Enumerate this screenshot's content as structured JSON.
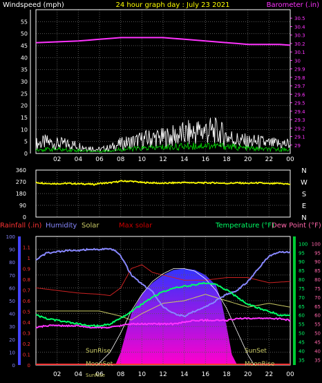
{
  "chart_data": [
    {
      "type": "line",
      "title": "24 hour graph day : July 23 2021",
      "left_axis_label": "Windspeed (mph)",
      "right_axis_label": "Barometer (.in)",
      "x_ticks": [
        "02",
        "04",
        "06",
        "08",
        "10",
        "12",
        "14",
        "16",
        "18",
        "20",
        "22",
        "00"
      ],
      "x_range": [
        0,
        24
      ],
      "left_ylim": [
        0,
        60
      ],
      "left_ticks": [
        "0",
        "5",
        "10",
        "15",
        "20",
        "25",
        "30",
        "35",
        "40",
        "45",
        "50",
        "55"
      ],
      "right_ylim": [
        28.9,
        30.6
      ],
      "right_ticks": [
        "29",
        "29.1",
        "29.2",
        "29.3",
        "29.4",
        "29.5",
        "29.6",
        "29.7",
        "29.8",
        "29.9",
        "30",
        "30.1",
        "30.2",
        "30.3",
        "30.4",
        "30.5"
      ],
      "grid": true,
      "series": [
        {
          "name": "Barometer (.in)",
          "color": "#ff33ff",
          "axis": "right",
          "x": [
            0,
            2,
            4,
            6,
            7,
            8,
            9,
            10,
            11,
            12,
            13,
            14,
            15,
            16,
            17,
            18,
            19,
            20,
            21,
            22,
            23,
            24
          ],
          "values": [
            30.21,
            30.22,
            30.23,
            30.25,
            30.26,
            30.27,
            30.27,
            30.27,
            30.27,
            30.27,
            30.26,
            30.25,
            30.24,
            30.23,
            30.22,
            30.21,
            30.2,
            30.19,
            30.19,
            30.19,
            30.19,
            30.18
          ]
        },
        {
          "name": "Windspeed (mph)",
          "color": "#ffffff",
          "axis": "left",
          "x": [
            0,
            1,
            2,
            3,
            4,
            5,
            6,
            7,
            8,
            9,
            10,
            11,
            12,
            13,
            14,
            15,
            16,
            17,
            18,
            19,
            20,
            21,
            22,
            23,
            24
          ],
          "values": [
            5,
            6,
            5,
            5,
            4,
            3,
            2,
            3,
            5,
            6,
            7,
            8,
            8,
            9,
            10,
            11,
            12,
            11,
            9,
            7,
            6,
            6,
            5,
            5,
            5
          ]
        },
        {
          "name": "Wind gust",
          "color": "#00cc00",
          "axis": "left",
          "x": [
            0,
            2,
            4,
            6,
            8,
            10,
            12,
            14,
            16,
            18,
            20,
            22,
            24
          ],
          "values": [
            2,
            2,
            1.5,
            1,
            2,
            2.5,
            3,
            3.5,
            4,
            3.5,
            2.5,
            2,
            2
          ]
        }
      ]
    },
    {
      "type": "line",
      "title": "",
      "y_ticks": [
        "360",
        "270",
        "180",
        "90",
        "0"
      ],
      "ylim": [
        0,
        360
      ],
      "right_labels": [
        "N",
        "W",
        "S",
        "E",
        "N"
      ],
      "x_range": [
        0,
        24
      ],
      "grid": true,
      "series": [
        {
          "name": "Wind direction",
          "color": "#ffff00",
          "x": [
            0,
            1,
            2,
            3,
            4,
            5,
            5.5,
            6,
            7,
            8,
            9,
            10,
            11,
            12,
            13,
            14,
            15,
            16,
            17,
            18,
            19,
            20,
            21,
            22,
            23,
            24
          ],
          "values": [
            265,
            258,
            256,
            258,
            255,
            253,
            250,
            258,
            262,
            275,
            275,
            265,
            262,
            258,
            262,
            265,
            262,
            262,
            262,
            258,
            262,
            258,
            262,
            255,
            258,
            252
          ]
        }
      ]
    },
    {
      "type": "line",
      "title": "",
      "legend_left": [
        "Rainfall (.in)",
        "Humidity",
        "Solar",
        "Max solar"
      ],
      "legend_right": [
        "Temperature (°F)",
        "Dew Point (°F)"
      ],
      "legend_colors": {
        "Rainfall (.in)": "#ff3333",
        "Humidity": "#8888ff",
        "Solar": "#cccc66",
        "Max solar": "#cc0000",
        "Temperature (°F)": "#00ff66",
        "Dew Point (°F)": "#ff66aa"
      },
      "x_ticks": [
        "02",
        "04",
        "06",
        "08",
        "10",
        "12",
        "14",
        "16",
        "18",
        "20",
        "22",
        "00"
      ],
      "x_range": [
        0,
        24
      ],
      "humidity_ticks": [
        "0",
        "10",
        "20",
        "30",
        "40",
        "50",
        "60",
        "70",
        "80",
        "90",
        "100"
      ],
      "humidity_ylim": [
        0,
        100
      ],
      "rain_ticks": [
        "0",
        "0.1",
        "0.2",
        "0.3",
        "0.4",
        "0.5",
        "0.6",
        "0.7",
        "0.8",
        "0.9",
        "1",
        "1.1"
      ],
      "rain_ylim": [
        0,
        1.2
      ],
      "temp_ticks": [
        "35",
        "40",
        "45",
        "50",
        "55",
        "60",
        "65",
        "70",
        "75",
        "80",
        "85",
        "90",
        "95",
        "100"
      ],
      "temp_ylim": [
        32,
        104
      ],
      "dew_ticks": [
        "35",
        "40",
        "45",
        "50",
        "55",
        "60",
        "65",
        "70",
        "75",
        "80",
        "85",
        "90",
        "95",
        "100"
      ],
      "annotations": [
        "SunRise",
        "MoonSet",
        "SunSet",
        "MoonRise",
        "SunRise"
      ],
      "series": [
        {
          "name": "Humidity",
          "color": "#8888ff",
          "axis": "humidity",
          "x": [
            0,
            1,
            2,
            3,
            4,
            5,
            6,
            7,
            7.5,
            8,
            9,
            10,
            11,
            12,
            13,
            14,
            15,
            16,
            17,
            18,
            19,
            20,
            21,
            22,
            23,
            24
          ],
          "values": [
            82,
            87,
            88,
            89,
            89,
            90,
            90,
            90,
            89,
            85,
            70,
            63,
            57,
            45,
            40,
            38,
            42,
            45,
            50,
            55,
            58,
            65,
            75,
            85,
            88,
            88
          ]
        },
        {
          "name": "Temperature (°F)",
          "color": "#00ff66",
          "axis": "temp",
          "x": [
            0,
            1,
            2,
            3,
            4,
            5,
            6,
            7,
            8,
            9,
            10,
            11,
            12,
            13,
            14,
            15,
            16,
            17,
            18,
            19,
            20,
            21,
            22,
            23,
            24
          ],
          "values": [
            60,
            58,
            57,
            56,
            55,
            54,
            54,
            55,
            58,
            62,
            66,
            70,
            73,
            75,
            76,
            77,
            78,
            77,
            74,
            70,
            66,
            64,
            62,
            60,
            60
          ]
        },
        {
          "name": "Dew Point (°F)",
          "color": "#ff33ff",
          "axis": "dew",
          "x": [
            0,
            1,
            2,
            3,
            4,
            5,
            6,
            7,
            8,
            9,
            10,
            11,
            12,
            13,
            14,
            15,
            16,
            17,
            18,
            19,
            20,
            21,
            22,
            23,
            24
          ],
          "values": [
            53,
            54,
            54,
            54,
            54,
            53,
            53,
            53,
            54,
            55,
            55,
            55,
            55,
            55,
            56,
            57,
            57,
            57,
            57,
            58,
            58,
            58,
            58,
            58,
            57
          ]
        },
        {
          "name": "Max solar",
          "color": "#cc2222",
          "axis": "humidity",
          "x": [
            0,
            2,
            4,
            6,
            7,
            8,
            9,
            10,
            11,
            12,
            14,
            16,
            18,
            20,
            22,
            24
          ],
          "values": [
            60,
            58,
            56,
            55,
            54,
            60,
            75,
            78,
            72,
            70,
            66,
            66,
            68,
            68,
            64,
            65
          ]
        },
        {
          "name": "Solar",
          "color": "#cccc66",
          "axis": "humidity",
          "x": [
            0,
            2,
            4,
            6,
            7,
            8,
            9,
            10,
            12,
            14,
            16,
            18,
            20,
            22,
            24
          ],
          "values": [
            42,
            42,
            42,
            42,
            40,
            38,
            35,
            40,
            48,
            50,
            55,
            50,
            45,
            48,
            45
          ]
        },
        {
          "name": "Solar radiation",
          "color": "#4444ff",
          "axis": "humidity",
          "x": [
            7.5,
            8,
            8.5,
            9,
            10,
            11,
            12,
            13,
            14,
            15,
            16,
            17,
            17.5,
            18,
            18.5,
            19
          ],
          "values": [
            0,
            10,
            25,
            40,
            55,
            64,
            70,
            74,
            75,
            74,
            70,
            62,
            50,
            30,
            8,
            0
          ]
        },
        {
          "name": "Max solar curve",
          "color": "#ffffff",
          "axis": "humidity",
          "x": [
            5.8,
            7,
            8,
            9,
            10,
            11,
            12,
            13,
            14,
            15,
            16,
            17,
            18,
            19,
            20,
            20.6
          ],
          "values": [
            0,
            10,
            25,
            42,
            55,
            65,
            71,
            75,
            75,
            73,
            67,
            58,
            44,
            26,
            8,
            0
          ]
        }
      ]
    }
  ]
}
